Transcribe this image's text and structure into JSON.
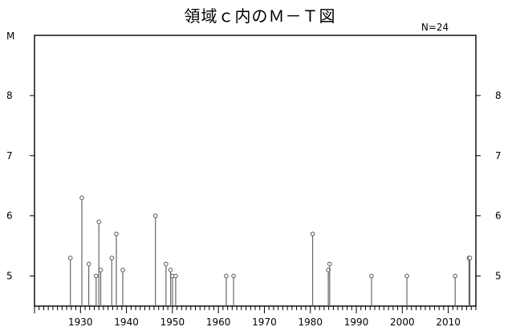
{
  "chart_data": {
    "type": "stem",
    "title": "領域ｃ内のＭ－Ｔ図",
    "count_label": "N=24",
    "ylabel": "M",
    "xlim": [
      1920,
      2016
    ],
    "ylim": [
      4.5,
      9.0
    ],
    "x_ticks": [
      "1930",
      "1940",
      "1950",
      "1960",
      "1970",
      "1980",
      "1990",
      "2000",
      "2010"
    ],
    "y_ticks": [
      "5",
      "6",
      "7",
      "8"
    ],
    "grid": false,
    "points": [
      {
        "x": 1927.8,
        "y": 5.3
      },
      {
        "x": 1930.3,
        "y": 6.3
      },
      {
        "x": 1931.8,
        "y": 5.2
      },
      {
        "x": 1933.4,
        "y": 5.0
      },
      {
        "x": 1934.0,
        "y": 5.9
      },
      {
        "x": 1934.4,
        "y": 5.1
      },
      {
        "x": 1936.8,
        "y": 5.3
      },
      {
        "x": 1937.8,
        "y": 5.7
      },
      {
        "x": 1939.2,
        "y": 5.1
      },
      {
        "x": 1946.3,
        "y": 6.0
      },
      {
        "x": 1948.6,
        "y": 5.2
      },
      {
        "x": 1949.6,
        "y": 5.1
      },
      {
        "x": 1950.0,
        "y": 5.0
      },
      {
        "x": 1950.7,
        "y": 5.0
      },
      {
        "x": 1961.7,
        "y": 5.0
      },
      {
        "x": 1963.3,
        "y": 5.0
      },
      {
        "x": 1980.5,
        "y": 5.7
      },
      {
        "x": 1983.9,
        "y": 5.1
      },
      {
        "x": 1984.2,
        "y": 5.2
      },
      {
        "x": 1993.3,
        "y": 5.0
      },
      {
        "x": 2001.0,
        "y": 5.0
      },
      {
        "x": 2011.5,
        "y": 5.0
      },
      {
        "x": 2014.5,
        "y": 5.3
      },
      {
        "x": 2014.7,
        "y": 5.3
      }
    ]
  }
}
